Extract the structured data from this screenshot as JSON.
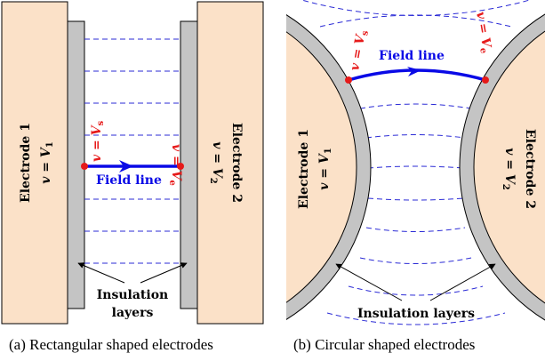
{
  "colors": {
    "electrode_fill": "#fbe1c8",
    "insulation_fill": "#c4c4c4",
    "field_line": "#0a0ae6",
    "dashed_lines": "#2b2bd6",
    "marker": "#e61a1a",
    "voltage_label": "#e61a1a"
  },
  "panel_a": {
    "electrode1": {
      "name": "Electrode 1",
      "eq_var": "v",
      "eq_sym": "V",
      "eq_sub": "1"
    },
    "electrode2": {
      "name": "Electrode 2",
      "eq_var": "v",
      "eq_sym": "V",
      "eq_sub": "2"
    },
    "start_label": {
      "var": "v",
      "sym": "V",
      "sub": "s"
    },
    "end_label": {
      "var": "v",
      "sym": "V",
      "sub": "e"
    },
    "field_line_label": "Field line",
    "insulation_label_line1": "Insulation",
    "insulation_label_line2": "layers",
    "caption": "(a) Rectangular shaped electrodes"
  },
  "panel_b": {
    "electrode1": {
      "name": "Electrode 1",
      "eq_var": "v",
      "eq_sym": "V",
      "eq_sub": "1"
    },
    "electrode2": {
      "name": "Electrode 2",
      "eq_var": "v",
      "eq_sym": "V",
      "eq_sub": "2"
    },
    "start_label": {
      "var": "v",
      "sym": "V",
      "sub": "s"
    },
    "end_label": {
      "var": "v",
      "sym": "V",
      "sub": "e"
    },
    "field_line_label": "Field line",
    "insulation_label": "Insulation layers",
    "caption": "(b) Circular shaped electrodes"
  }
}
